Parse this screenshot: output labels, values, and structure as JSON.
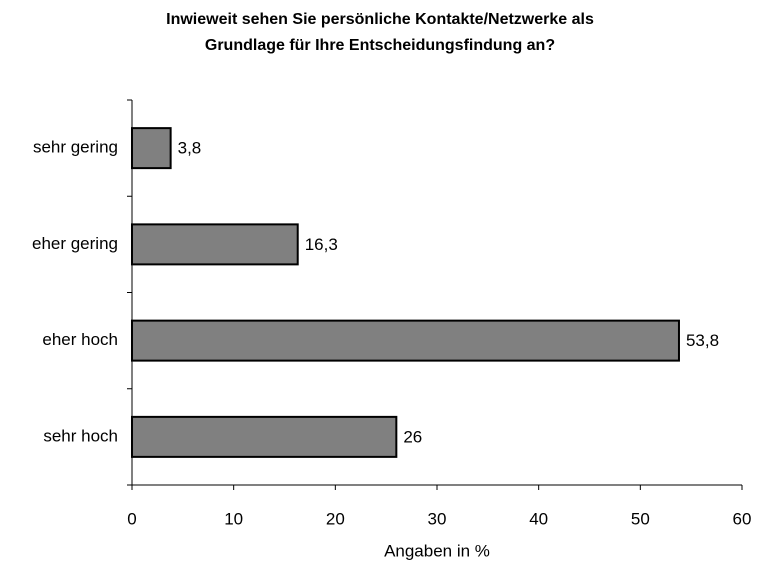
{
  "chart_data": {
    "type": "barh",
    "title": [
      "Inwieweit sehen Sie persönliche Kontakte/Netzwerke als",
      "Grundlage für Ihre Entscheidungsfindung an?"
    ],
    "categories": [
      "sehr gering",
      "eher gering",
      "eher hoch",
      "sehr hoch"
    ],
    "values": [
      3.8,
      16.3,
      53.8,
      26
    ],
    "value_labels": [
      "3,8",
      "16,3",
      "53,8",
      "26"
    ],
    "color": "#808080",
    "xlabel": "Angaben in %",
    "xlim": [
      0,
      60
    ],
    "xticks": [
      0,
      10,
      20,
      30,
      40,
      50,
      60
    ]
  }
}
